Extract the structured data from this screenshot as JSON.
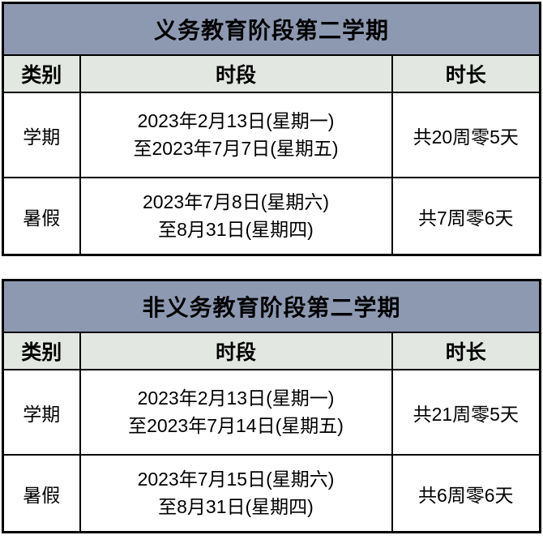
{
  "colors": {
    "title_band_bg": "#8c99b1",
    "header_row_bg": "#e3e7e2",
    "data_cell_bg": "#ffffff",
    "border": "#000000",
    "text": "#000000"
  },
  "tables": [
    {
      "title": "义务教育阶段第二学期",
      "headers": [
        "类别",
        "时段",
        "时长"
      ],
      "rows": [
        {
          "category": "学期",
          "period_line1": "2023年2月13日(星期一)",
          "period_line2": "至2023年7月7日(星期五)",
          "duration": "共20周零5天"
        },
        {
          "category": "暑假",
          "period_line1": "2023年7月8日(星期六)",
          "period_line2": "至8月31日(星期四)",
          "duration": "共7周零6天"
        }
      ]
    },
    {
      "title": "非义务教育阶段第二学期",
      "headers": [
        "类别",
        "时段",
        "时长"
      ],
      "rows": [
        {
          "category": "学期",
          "period_line1": "2023年2月13日(星期一)",
          "period_line2": "至2023年7月14日(星期五)",
          "duration": "共21周零5天"
        },
        {
          "category": "暑假",
          "period_line1": "2023年7月15日(星期六)",
          "period_line2": "至8月31日(星期四)",
          "duration": "共6周零6天"
        }
      ]
    }
  ]
}
